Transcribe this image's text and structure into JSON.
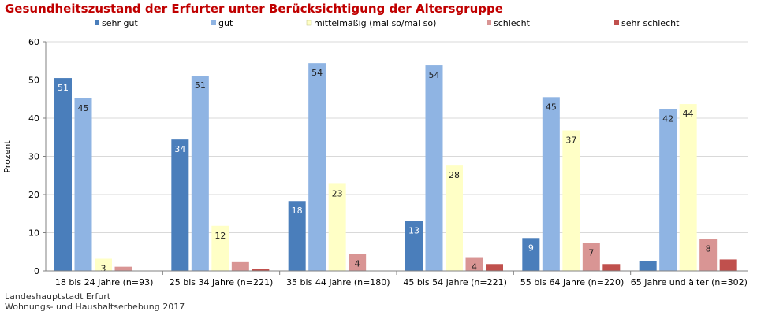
{
  "chart_data": {
    "type": "bar",
    "title": "Gesundheitszustand der Erfurter unter Berücksichtigung der Altersgruppe",
    "ylabel": "Prozent",
    "ylim": [
      0,
      60
    ],
    "yticks": [
      0,
      10,
      20,
      30,
      40,
      50,
      60
    ],
    "grid": true,
    "legend_position": "top",
    "categories": [
      "18 bis 24 Jahre (n=93)",
      "25 bis 34 Jahre (n=221)",
      "35 bis 44 Jahre (n=180)",
      "45 bis 54 Jahre (n=221)",
      "55 bis 64 Jahre (n=220)",
      "65 Jahre und älter (n=302)"
    ],
    "series": [
      {
        "name": "sehr gut",
        "color": "#4a7ebb",
        "values": [
          50.5,
          34.4,
          18.3,
          13.1,
          8.6,
          2.6
        ],
        "labels": [
          "51",
          "34",
          "18",
          "13",
          "9",
          ""
        ],
        "label_color": "#ffffff"
      },
      {
        "name": "gut",
        "color": "#8fb4e3",
        "values": [
          45.2,
          51.1,
          54.4,
          53.8,
          45.5,
          42.4
        ],
        "labels": [
          "45",
          "51",
          "54",
          "54",
          "45",
          "42"
        ],
        "label_color": "#1f1f1f"
      },
      {
        "name": "mittelmäßig (mal so/mal so)",
        "color": "#ffffc6",
        "values": [
          3.2,
          11.8,
          22.8,
          27.6,
          36.8,
          43.7
        ],
        "labels": [
          "3",
          "12",
          "23",
          "28",
          "37",
          "44"
        ],
        "label_color": "#1f1f1f"
      },
      {
        "name": "schlecht",
        "color": "#d99594",
        "values": [
          1.1,
          2.3,
          4.4,
          3.6,
          7.3,
          8.3
        ],
        "labels": [
          "",
          "",
          "4",
          "4",
          "7",
          "8"
        ],
        "label_color": "#1f1f1f"
      },
      {
        "name": "sehr schlecht",
        "color": "#c0504d",
        "values": [
          0,
          0.5,
          0,
          1.8,
          1.8,
          3.0
        ],
        "labels": [
          "",
          "",
          "",
          "",
          "",
          ""
        ],
        "label_color": "#ffffff"
      }
    ]
  },
  "title_color": "#c00000",
  "source_lines": [
    "Landeshauptstadt Erfurt",
    "Wohnungs- und Haushaltserhebung 2017"
  ]
}
